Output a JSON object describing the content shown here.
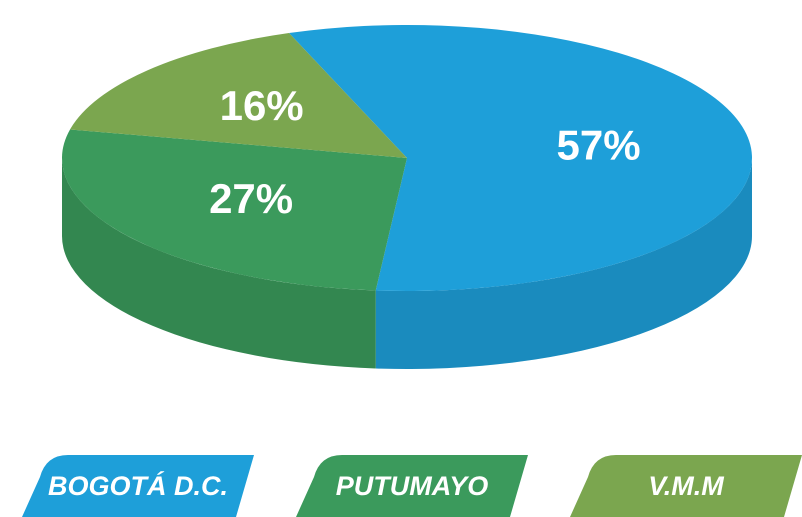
{
  "chart_data": {
    "type": "pie",
    "categories": [
      "BOGOTÁ D.C.",
      "PUTUMAYO",
      "V.M.M"
    ],
    "values": [
      57,
      27,
      16
    ],
    "value_labels": [
      "57%",
      "27%",
      "16%"
    ],
    "colors": [
      "#1e9fd9",
      "#3b9a5c",
      "#7ba64f"
    ]
  }
}
